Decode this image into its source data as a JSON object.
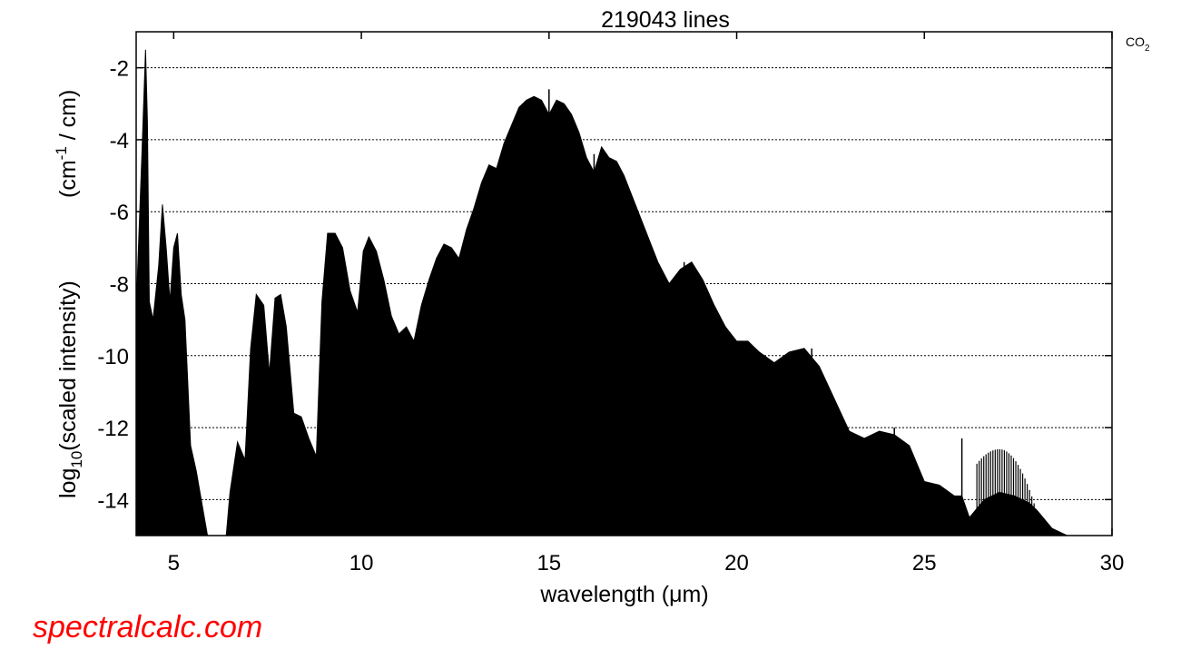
{
  "chart_data": {
    "type": "area",
    "title": "219043 lines",
    "legend_label": "CO",
    "legend_sub": "2",
    "xlabel": "wavelength (μm)",
    "ylabel_main": "log",
    "ylabel_sub": "10",
    "ylabel_text": "(scaled intensity)",
    "ylabel_unit_a": "(cm",
    "ylabel_unit_sup": "-1",
    "ylabel_unit_b": " / cm)",
    "xlim": [
      4,
      30
    ],
    "ylim": [
      -15,
      -1
    ],
    "x_ticks": [
      5,
      10,
      15,
      20,
      25,
      30
    ],
    "x_tick_labels": [
      "5",
      "10",
      "15",
      "20",
      "25",
      "30"
    ],
    "y_ticks": [
      -2,
      -4,
      -6,
      -8,
      -10,
      -12,
      -14
    ],
    "y_tick_labels": [
      "-2",
      "-4",
      "-6",
      "-8",
      "-10",
      "-12",
      "-14"
    ],
    "grid": "horizontal-dotted",
    "fill_color": "#000000",
    "envelope": {
      "x": [
        4.0,
        4.15,
        4.25,
        4.3,
        4.35,
        4.45,
        4.6,
        4.7,
        4.8,
        4.9,
        5.0,
        5.1,
        5.2,
        5.3,
        5.45,
        5.6,
        5.8,
        5.9,
        6.0,
        6.4,
        6.5,
        6.7,
        6.9,
        7.05,
        7.2,
        7.4,
        7.55,
        7.7,
        7.85,
        8.0,
        8.2,
        8.4,
        8.6,
        8.8,
        8.95,
        9.1,
        9.3,
        9.5,
        9.7,
        9.9,
        10.05,
        10.2,
        10.4,
        10.6,
        10.8,
        11.0,
        11.2,
        11.4,
        11.6,
        11.8,
        12.0,
        12.2,
        12.4,
        12.6,
        12.8,
        13.0,
        13.2,
        13.4,
        13.6,
        13.8,
        14.0,
        14.2,
        14.4,
        14.6,
        14.8,
        15.0,
        15.2,
        15.4,
        15.6,
        15.8,
        16.0,
        16.2,
        16.4,
        16.6,
        16.8,
        17.0,
        17.3,
        17.6,
        17.9,
        18.2,
        18.5,
        18.8,
        19.1,
        19.4,
        19.7,
        20.0,
        20.3,
        20.6,
        21.0,
        21.4,
        21.8,
        22.2,
        22.6,
        23.0,
        23.4,
        23.8,
        24.2,
        24.6,
        25.0,
        25.4,
        25.8,
        26.0,
        26.2,
        26.6,
        27.0,
        27.4,
        27.8,
        28.0,
        28.4,
        28.8,
        29.0
      ],
      "y": [
        -8.7,
        -4.5,
        -1.5,
        -3.5,
        -8.5,
        -9.0,
        -7.5,
        -5.8,
        -7.0,
        -8.5,
        -7.0,
        -6.6,
        -8.3,
        -9.0,
        -12.5,
        -13.2,
        -14.4,
        -15.0,
        -15.0,
        -15.0,
        -13.8,
        -12.4,
        -12.9,
        -9.8,
        -8.3,
        -8.6,
        -10.5,
        -8.4,
        -8.3,
        -9.2,
        -11.6,
        -11.7,
        -12.3,
        -12.8,
        -8.5,
        -6.6,
        -6.6,
        -7.0,
        -8.2,
        -8.8,
        -7.1,
        -6.7,
        -7.1,
        -7.9,
        -8.9,
        -9.4,
        -9.2,
        -9.6,
        -8.6,
        -7.9,
        -7.3,
        -6.9,
        -7.0,
        -7.3,
        -6.5,
        -5.9,
        -5.2,
        -4.7,
        -4.8,
        -4.1,
        -3.6,
        -3.1,
        -2.9,
        -2.8,
        -2.9,
        -3.3,
        -2.9,
        -3.0,
        -3.3,
        -3.8,
        -4.5,
        -4.9,
        -4.2,
        -4.5,
        -4.6,
        -5.0,
        -5.8,
        -6.6,
        -7.4,
        -8.0,
        -7.6,
        -7.4,
        -7.9,
        -8.6,
        -9.2,
        -9.6,
        -9.6,
        -9.9,
        -10.2,
        -9.9,
        -9.8,
        -10.3,
        -11.2,
        -12.1,
        -12.3,
        -12.1,
        -12.2,
        -12.5,
        -13.5,
        -13.6,
        -13.9,
        -13.9,
        -14.5,
        -14.0,
        -13.8,
        -13.9,
        -14.1,
        -14.3,
        -14.8,
        -15.0,
        -15.0
      ],
      "spikes": [
        {
          "x": 15.0,
          "y": -2.6
        },
        {
          "x": 16.2,
          "y": -4.4
        },
        {
          "x": 11.5,
          "y": -9.7
        },
        {
          "x": 18.6,
          "y": -7.4
        },
        {
          "x": 22.0,
          "y": -9.8
        },
        {
          "x": 26.0,
          "y": -12.3
        },
        {
          "x": 24.2,
          "y": -12.0
        }
      ]
    },
    "line_region": {
      "x_start": 26.4,
      "x_end": 28.9,
      "peak_x": 27.0,
      "peak_y": -12.6,
      "line_count": 42
    }
  },
  "watermark": "spectralcalc.com"
}
